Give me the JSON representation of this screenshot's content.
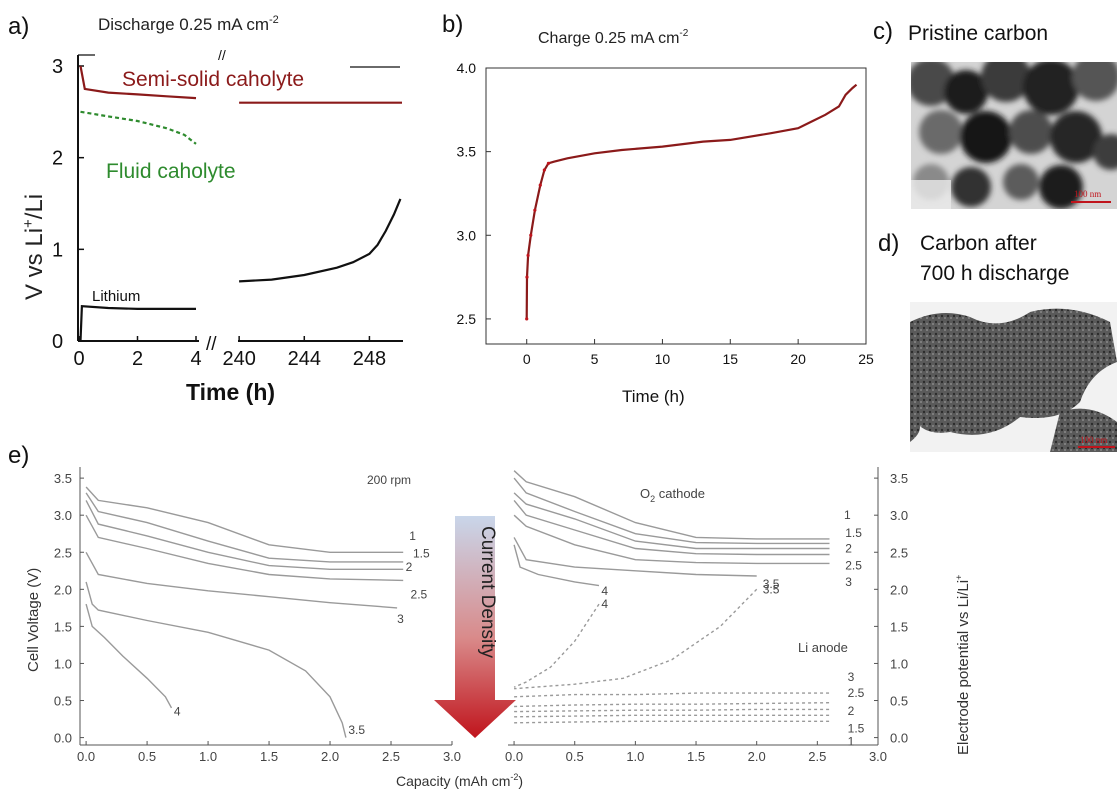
{
  "panels": {
    "a": {
      "letter": "a)",
      "title_main": "Discharge 0.25 mA cm",
      "title_sup": "-2",
      "ylabel_main": "V vs Li",
      "ylabel_sup": "+",
      "ylabel_tail": "/Li",
      "xlabel": "Time (h)",
      "break_mark": "//"
    },
    "b": {
      "letter": "b)",
      "title_main": "Charge 0.25 mA cm",
      "title_sup": "-2",
      "xlabel": "Time (h)"
    },
    "c": {
      "letter": "c)",
      "caption": "Pristine carbon",
      "scale_label": "100 nm"
    },
    "d": {
      "letter": "d)",
      "caption_line1": "Carbon after",
      "caption_line2": "700 h discharge",
      "scale_label": "100 nm"
    },
    "e": {
      "letter": "e)",
      "arrow_label": "Current Density",
      "xlabel": "Capacity (mAh cm",
      "xlabel_sup": "-2",
      "xlabel_tail": ")",
      "left_ylabel": "Cell Voltage (V)",
      "right_ylabel_main": "Electrode potential vs Li/Li",
      "right_ylabel_sup": "+",
      "left_annotation": "200 rpm",
      "o2_cathode_main": "O",
      "o2_cathode_sub": "2",
      "o2_cathode_tail": " cathode",
      "li_anode": "Li anode",
      "right_last_tick": "3.0"
    }
  },
  "colors": {
    "semi_solid": "#8b1a1a",
    "fluid": "#2e8b2e",
    "charge_line": "#8b1a1a",
    "e_curves": "#9a9a9a",
    "arrow_top": "#c9d6ea",
    "arrow_bottom": "#c0141c"
  },
  "chart_data": [
    {
      "id": "a",
      "type": "line",
      "title": "Discharge 0.25 mA cm-2",
      "xlabel": "Time (h)",
      "ylabel": "V vs Li+/Li",
      "x_segments": [
        {
          "xlim": [
            0,
            4
          ],
          "ticks": [
            0,
            2,
            4
          ]
        },
        {
          "xlim": [
            239.5,
            250
          ],
          "ticks": [
            240,
            244,
            248
          ]
        }
      ],
      "ylim": [
        0,
        3
      ],
      "yticks": [
        0,
        1,
        2,
        3
      ],
      "series": [
        {
          "name": "Semi-solid caholyte",
          "color": "#8b1a1a",
          "seg1": [
            [
              0.05,
              3.0
            ],
            [
              0.2,
              2.75
            ],
            [
              1,
              2.71
            ],
            [
              2,
              2.69
            ],
            [
              3,
              2.67
            ],
            [
              4,
              2.65
            ]
          ],
          "seg2": [
            [
              240,
              2.6
            ],
            [
              250,
              2.6
            ]
          ]
        },
        {
          "name": "Fluid caholyte",
          "color": "#2e8b2e",
          "dashed": true,
          "seg1": [
            [
              0.05,
              2.5
            ],
            [
              1,
              2.45
            ],
            [
              2,
              2.4
            ],
            [
              3,
              2.32
            ],
            [
              3.6,
              2.25
            ],
            [
              4,
              2.15
            ]
          ]
        },
        {
          "name": "Lithium",
          "color": "#111111",
          "seg1": [
            [
              0.05,
              0.0
            ],
            [
              0.1,
              0.38
            ],
            [
              1,
              0.36
            ],
            [
              2,
              0.35
            ],
            [
              4,
              0.35
            ]
          ],
          "seg2": [
            [
              240,
              0.65
            ],
            [
              242,
              0.67
            ],
            [
              244,
              0.72
            ],
            [
              246,
              0.8
            ],
            [
              247,
              0.86
            ],
            [
              248,
              0.95
            ],
            [
              248.5,
              1.05
            ],
            [
              249,
              1.2
            ],
            [
              249.5,
              1.38
            ],
            [
              249.9,
              1.55
            ]
          ]
        }
      ]
    },
    {
      "id": "b",
      "type": "line",
      "title": "Charge 0.25 mA cm-2",
      "xlabel": "Time (h)",
      "ylabel": "",
      "xlim": [
        -3,
        25
      ],
      "ylim": [
        2.35,
        4.0
      ],
      "xticks": [
        0,
        5,
        10,
        15,
        20,
        25
      ],
      "yticks": [
        2.5,
        3.0,
        3.5,
        4.0
      ],
      "series": [
        {
          "name": "",
          "color": "#8b1a1a",
          "points": [
            [
              0,
              2.5
            ],
            [
              0.02,
              2.75
            ],
            [
              0.1,
              2.88
            ],
            [
              0.3,
              3.0
            ],
            [
              0.6,
              3.15
            ],
            [
              1.0,
              3.3
            ],
            [
              1.3,
              3.39
            ],
            [
              1.6,
              3.43
            ],
            [
              2,
              3.44
            ],
            [
              3,
              3.46
            ],
            [
              5,
              3.49
            ],
            [
              7,
              3.51
            ],
            [
              10,
              3.53
            ],
            [
              13,
              3.56
            ],
            [
              15,
              3.57
            ],
            [
              18,
              3.61
            ],
            [
              20,
              3.64
            ],
            [
              21,
              3.68
            ],
            [
              22,
              3.72
            ],
            [
              23,
              3.77
            ],
            [
              23.5,
              3.84
            ],
            [
              24,
              3.88
            ],
            [
              24.3,
              3.9
            ]
          ]
        }
      ]
    },
    {
      "id": "e-left",
      "type": "line",
      "xlabel": "Capacity (mAh cm-2)",
      "ylabel": "Cell Voltage (V)",
      "xlim": [
        -0.05,
        3.0
      ],
      "ylim": [
        -0.1,
        3.65
      ],
      "xticks": [
        0.0,
        0.5,
        1.0,
        1.5,
        2.0,
        2.5,
        3.0
      ],
      "yticks": [
        0.0,
        0.5,
        1.0,
        1.5,
        2.0,
        2.5,
        3.0,
        3.5
      ],
      "series": [
        {
          "name": "1",
          "label_at": [
            2.65,
            2.72
          ],
          "points": [
            [
              0,
              3.38
            ],
            [
              0.1,
              3.2
            ],
            [
              0.5,
              3.1
            ],
            [
              1.0,
              2.9
            ],
            [
              1.5,
              2.6
            ],
            [
              2.0,
              2.5
            ],
            [
              2.6,
              2.5
            ]
          ]
        },
        {
          "name": "1.5",
          "label_at": [
            2.68,
            2.48
          ],
          "points": [
            [
              0,
              3.3
            ],
            [
              0.1,
              3.05
            ],
            [
              0.5,
              2.9
            ],
            [
              1.0,
              2.65
            ],
            [
              1.5,
              2.42
            ],
            [
              2.0,
              2.37
            ],
            [
              2.6,
              2.37
            ]
          ]
        },
        {
          "name": "2",
          "label_at": [
            2.62,
            2.3
          ],
          "points": [
            [
              0,
              3.2
            ],
            [
              0.1,
              2.88
            ],
            [
              0.5,
              2.72
            ],
            [
              1.0,
              2.5
            ],
            [
              1.5,
              2.32
            ],
            [
              2.0,
              2.27
            ],
            [
              2.6,
              2.27
            ]
          ]
        },
        {
          "name": "2.5",
          "label_at": [
            2.66,
            1.93
          ],
          "points": [
            [
              0,
              3.0
            ],
            [
              0.1,
              2.7
            ],
            [
              0.5,
              2.55
            ],
            [
              1.0,
              2.35
            ],
            [
              1.5,
              2.2
            ],
            [
              2.0,
              2.14
            ],
            [
              2.6,
              2.12
            ]
          ]
        },
        {
          "name": "3",
          "label_at": [
            2.55,
            1.6
          ],
          "points": [
            [
              0,
              2.5
            ],
            [
              0.1,
              2.2
            ],
            [
              0.5,
              2.08
            ],
            [
              1.0,
              1.98
            ],
            [
              1.5,
              1.9
            ],
            [
              2.0,
              1.82
            ],
            [
              2.55,
              1.75
            ]
          ]
        },
        {
          "name": "3.5",
          "label_at": [
            2.15,
            0.1
          ],
          "points": [
            [
              0,
              2.1
            ],
            [
              0.05,
              1.8
            ],
            [
              0.1,
              1.72
            ],
            [
              0.5,
              1.58
            ],
            [
              1.0,
              1.42
            ],
            [
              1.5,
              1.18
            ],
            [
              1.8,
              0.9
            ],
            [
              2.0,
              0.55
            ],
            [
              2.1,
              0.2
            ],
            [
              2.13,
              0.0
            ]
          ]
        },
        {
          "name": "4",
          "label_at": [
            0.72,
            0.35
          ],
          "points": [
            [
              0,
              1.8
            ],
            [
              0.05,
              1.5
            ],
            [
              0.15,
              1.35
            ],
            [
              0.3,
              1.1
            ],
            [
              0.5,
              0.8
            ],
            [
              0.65,
              0.55
            ],
            [
              0.7,
              0.4
            ]
          ]
        }
      ]
    },
    {
      "id": "e-right",
      "type": "line",
      "xlabel": "Capacity (mAh cm-2)",
      "ylabel": "Electrode potential vs Li/Li+",
      "xlim": [
        -0.05,
        3.0
      ],
      "ylim": [
        -0.1,
        3.65
      ],
      "xticks": [
        0.0,
        0.5,
        1.0,
        1.5,
        2.0,
        2.5,
        3.0
      ],
      "yticks": [
        0.0,
        0.5,
        1.0,
        1.5,
        2.0,
        2.5,
        3.0,
        3.5
      ],
      "annotations": [
        "O2 cathode",
        "Li anode"
      ],
      "cathode_series": [
        {
          "name": "1",
          "label_at": [
            2.72,
            3.0
          ],
          "points": [
            [
              0,
              3.6
            ],
            [
              0.1,
              3.45
            ],
            [
              0.5,
              3.25
            ],
            [
              1.0,
              2.9
            ],
            [
              1.5,
              2.7
            ],
            [
              2.0,
              2.68
            ],
            [
              2.6,
              2.68
            ]
          ]
        },
        {
          "name": "1.5",
          "label_at": [
            2.73,
            2.76
          ],
          "points": [
            [
              0,
              3.5
            ],
            [
              0.1,
              3.3
            ],
            [
              0.5,
              3.05
            ],
            [
              1.0,
              2.75
            ],
            [
              1.5,
              2.63
            ],
            [
              2.0,
              2.62
            ],
            [
              2.6,
              2.62
            ]
          ]
        },
        {
          "name": "2",
          "label_at": [
            2.73,
            2.55
          ],
          "points": [
            [
              0,
              3.3
            ],
            [
              0.1,
              3.15
            ],
            [
              0.5,
              2.95
            ],
            [
              1.0,
              2.65
            ],
            [
              1.5,
              2.55
            ],
            [
              2.0,
              2.55
            ],
            [
              2.6,
              2.55
            ]
          ]
        },
        {
          "name": "2.5",
          "label_at": [
            2.73,
            2.32
          ],
          "points": [
            [
              0,
              3.2
            ],
            [
              0.1,
              3.0
            ],
            [
              0.5,
              2.8
            ],
            [
              1.0,
              2.55
            ],
            [
              1.5,
              2.48
            ],
            [
              2.0,
              2.47
            ],
            [
              2.6,
              2.47
            ]
          ]
        },
        {
          "name": "3",
          "label_at": [
            2.73,
            2.1
          ],
          "points": [
            [
              0,
              3.0
            ],
            [
              0.1,
              2.85
            ],
            [
              0.5,
              2.6
            ],
            [
              1.0,
              2.4
            ],
            [
              1.5,
              2.36
            ],
            [
              2.0,
              2.35
            ],
            [
              2.6,
              2.35
            ]
          ]
        },
        {
          "name": "3.5",
          "label_at": [
            2.05,
            2.07
          ],
          "points": [
            [
              0,
              2.7
            ],
            [
              0.1,
              2.4
            ],
            [
              0.5,
              2.3
            ],
            [
              1.0,
              2.25
            ],
            [
              1.5,
              2.2
            ],
            [
              2.0,
              2.18
            ]
          ]
        },
        {
          "name": "4",
          "label_at": [
            0.72,
            1.98
          ],
          "points": [
            [
              0,
              2.6
            ],
            [
              0.05,
              2.3
            ],
            [
              0.2,
              2.2
            ],
            [
              0.5,
              2.1
            ],
            [
              0.7,
              2.05
            ]
          ]
        }
      ],
      "anode_series": [
        {
          "name": "3",
          "label_at": [
            2.75,
            0.82
          ],
          "points": [
            [
              0,
              0.55
            ],
            [
              0.5,
              0.58
            ],
            [
              1.0,
              0.58
            ],
            [
              1.5,
              0.6
            ],
            [
              2.0,
              0.6
            ],
            [
              2.6,
              0.6
            ]
          ]
        },
        {
          "name": "2.5",
          "label_at": [
            2.75,
            0.6
          ],
          "points": [
            [
              0,
              0.42
            ],
            [
              0.5,
              0.44
            ],
            [
              1.0,
              0.45
            ],
            [
              1.5,
              0.45
            ],
            [
              2.0,
              0.46
            ],
            [
              2.6,
              0.47
            ]
          ]
        },
        {
          "name": "2",
          "label_at": [
            2.75,
            0.36
          ],
          "points": [
            [
              0,
              0.35
            ],
            [
              0.5,
              0.36
            ],
            [
              1.0,
              0.37
            ],
            [
              1.5,
              0.37
            ],
            [
              2.0,
              0.38
            ],
            [
              2.6,
              0.38
            ]
          ]
        },
        {
          "name": "1.5",
          "label_at": [
            2.75,
            0.12
          ],
          "points": [
            [
              0,
              0.28
            ],
            [
              0.5,
              0.29
            ],
            [
              1.0,
              0.3
            ],
            [
              1.5,
              0.3
            ],
            [
              2.0,
              0.3
            ],
            [
              2.6,
              0.3
            ]
          ]
        },
        {
          "name": "1",
          "label_at": [
            2.75,
            -0.05
          ],
          "points": [
            [
              0,
              0.2
            ],
            [
              0.5,
              0.21
            ],
            [
              1.0,
              0.22
            ],
            [
              1.5,
              0.22
            ],
            [
              2.0,
              0.22
            ],
            [
              2.6,
              0.22
            ]
          ]
        },
        {
          "name": "4",
          "label_at": [
            0.72,
            1.8
          ],
          "points": [
            [
              0.7,
              1.8
            ],
            [
              0.5,
              1.3
            ],
            [
              0.3,
              0.95
            ],
            [
              0.1,
              0.75
            ],
            [
              0,
              0.68
            ]
          ]
        },
        {
          "name": "3.5",
          "label_at": [
            2.05,
            2.0
          ],
          "points": [
            [
              2.0,
              2.0
            ],
            [
              1.7,
              1.5
            ],
            [
              1.3,
              1.05
            ],
            [
              0.9,
              0.8
            ],
            [
              0.5,
              0.72
            ],
            [
              0.0,
              0.66
            ]
          ]
        }
      ]
    }
  ]
}
